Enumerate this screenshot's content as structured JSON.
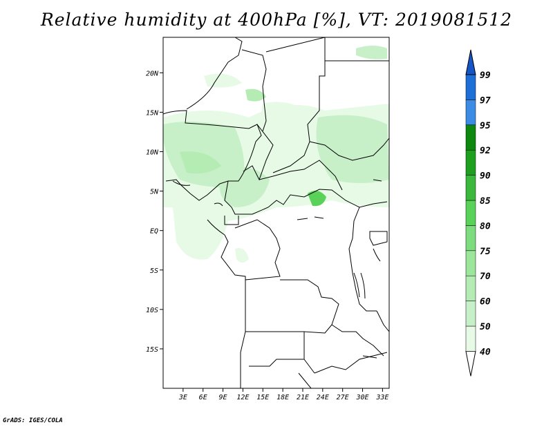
{
  "title": "Relative humidity at 400hPa [%], VT: 2019081512",
  "credit": "GrADS: IGES/COLA",
  "map": {
    "lat_labels": [
      "20N",
      "15N",
      "10N",
      "5N",
      "EQ",
      "5S",
      "10S",
      "15S"
    ],
    "lat_values": [
      20,
      15,
      10,
      5,
      0,
      -5,
      -10,
      -15
    ],
    "lon_labels": [
      "3E",
      "6E",
      "9E",
      "12E",
      "15E",
      "18E",
      "21E",
      "24E",
      "27E",
      "30E",
      "33E"
    ],
    "lon_values": [
      3,
      6,
      9,
      12,
      15,
      18,
      21,
      24,
      27,
      30,
      33
    ],
    "extent": {
      "lon_min": 0,
      "lon_max": 34,
      "lat_min": -20,
      "lat_max": 24.5
    }
  },
  "colorbar": {
    "labels": [
      "40",
      "50",
      "60",
      "70",
      "75",
      "80",
      "85",
      "90",
      "92",
      "95",
      "97",
      "99"
    ],
    "colors": [
      "#ffffff",
      "#e6fae6",
      "#c8f0c8",
      "#b4ecb4",
      "#9be69b",
      "#7ddc7d",
      "#5ad25a",
      "#3cb93c",
      "#1ea01e",
      "#0f880f",
      "#3c8ce6",
      "#1e6ed7",
      "#1455c8"
    ]
  }
}
